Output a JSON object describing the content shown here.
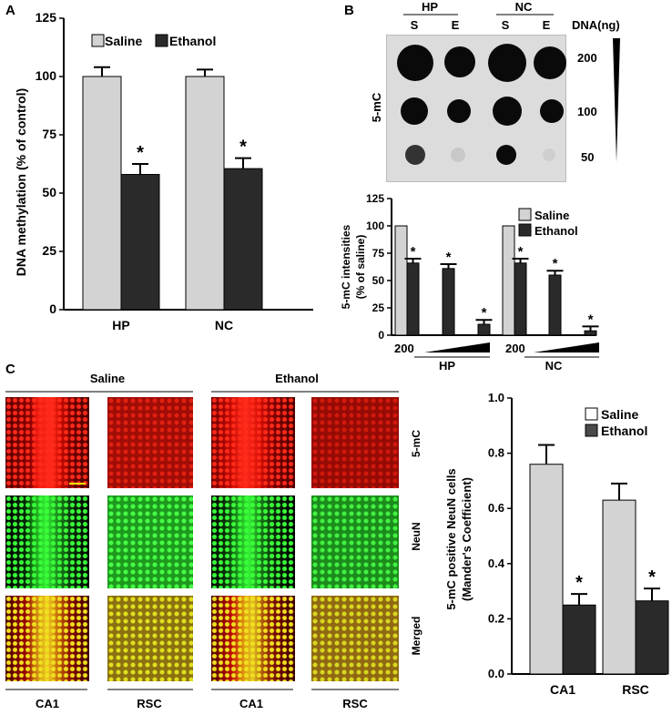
{
  "colors": {
    "saline": "#d3d3d3",
    "ethanol": "#2a2a2a",
    "axis": "#000000"
  },
  "panel_labels": {
    "a": "A",
    "b": "B",
    "c": "C"
  },
  "panel_b_blot": {
    "col_groups": [
      "HP",
      "NC"
    ],
    "col_labels": [
      "S",
      "E",
      "S",
      "E"
    ],
    "dna_label": "DNA(ng)",
    "row_label": "5-mC",
    "amounts": [
      "200",
      "100",
      "50"
    ]
  },
  "panel_b_bottom": {
    "start_labels": [
      "200",
      "200"
    ],
    "groups": [
      "HP",
      "NC"
    ]
  },
  "panel_c_images": {
    "treatment_headers": [
      "Saline",
      "Ethanol"
    ],
    "row_labels": [
      "5-mC",
      "NeuN",
      "Merged"
    ],
    "column_labels": [
      "CA1",
      "RSC",
      "CA1",
      "RSC"
    ]
  },
  "chart_data": [
    {
      "type": "bar",
      "categories": [
        "HP",
        "NC"
      ],
      "series": [
        {
          "name": "Saline",
          "values": [
            100,
            100
          ],
          "errors": [
            4,
            3
          ]
        },
        {
          "name": "Ethanol",
          "values": [
            58,
            60.5
          ],
          "errors": [
            4.5,
            4.5
          ],
          "sig": [
            "*",
            "*"
          ]
        }
      ],
      "ylabel": "DNA methylation (% of control)",
      "yticks": [
        "0",
        "25",
        "50",
        "75",
        "100",
        "125"
      ],
      "ylim": [
        0,
        125
      ]
    },
    {
      "type": "bar",
      "categories": [
        "HP 200",
        "HP 100",
        "HP 50",
        "NC 200",
        "NC 100",
        "NC 50"
      ],
      "series": [
        {
          "name": "Saline",
          "values": [
            100,
            0,
            0,
            100,
            0,
            0
          ]
        },
        {
          "name": "Ethanol",
          "values": [
            66,
            61,
            10,
            66,
            55,
            4
          ],
          "errors": [
            4,
            4,
            4,
            4,
            4,
            4
          ],
          "sig": [
            "*",
            "*",
            "*",
            "*",
            "*",
            "*"
          ]
        }
      ],
      "ylabel": "5-mC intensities (% of saline)",
      "ylabel_lines": [
        "5-mC intensities",
        "(% of saline)"
      ],
      "yticks": [
        "0",
        "25",
        "50",
        "75",
        "100",
        "125"
      ],
      "ylim": [
        0,
        125
      ]
    },
    {
      "type": "bar",
      "categories": [
        "CA1",
        "RSC"
      ],
      "series": [
        {
          "name": "Saline",
          "values": [
            0.76,
            0.63
          ],
          "errors": [
            0.07,
            0.06
          ]
        },
        {
          "name": "Ethanol",
          "values": [
            0.25,
            0.265
          ],
          "errors": [
            0.04,
            0.045
          ],
          "sig": [
            "*",
            "*"
          ]
        }
      ],
      "ylabel": "5-mC positive NeuN cells (Mander's Coefficient)",
      "ylabel_lines": [
        "5-mC positive NeuN cells",
        "(Mander's Coefficient)"
      ],
      "yticks": [
        "0.0",
        "0.2",
        "0.4",
        "0.6",
        "0.8",
        "1.0"
      ],
      "ylim": [
        0,
        1.0
      ]
    }
  ]
}
